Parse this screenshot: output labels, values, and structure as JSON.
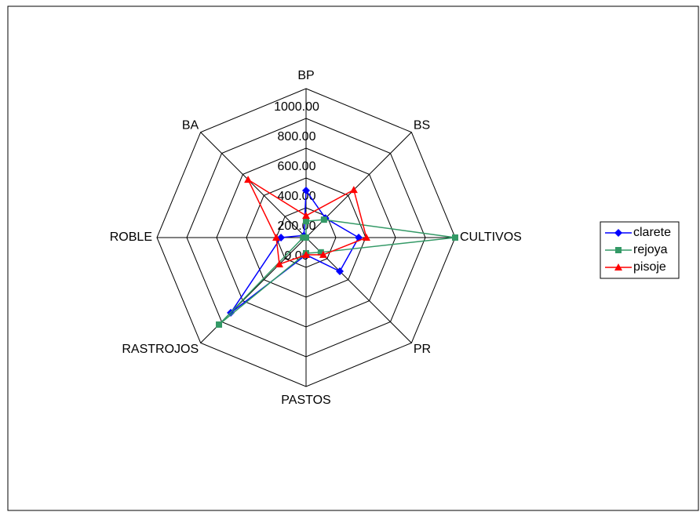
{
  "chart_data": {
    "type": "radar",
    "categories": [
      "BP",
      "BS",
      "CULTIVOS",
      "PR",
      "PASTOS",
      "RASTROJOS",
      "ROBLE",
      "BA"
    ],
    "series": [
      {
        "name": "clarete",
        "color": "#0000ff",
        "marker": "diamond",
        "values": [
          316,
          184,
          353,
          320,
          116,
          714,
          168,
          20
        ]
      },
      {
        "name": "rejoya",
        "color": "#339966",
        "marker": "square",
        "values": [
          110,
          170,
          1000,
          140,
          105,
          826,
          20,
          0
        ]
      },
      {
        "name": "pisoje",
        "color": "#ff0000",
        "marker": "triangle",
        "values": [
          147,
          453,
          405,
          163,
          116,
          253,
          200,
          550
        ]
      }
    ],
    "ylim": [
      0,
      1000
    ],
    "yticks": [
      {
        "value": 0,
        "label": "0.00"
      },
      {
        "value": 200,
        "label": "200.00"
      },
      {
        "value": 400,
        "label": "400.00"
      },
      {
        "value": 600,
        "label": "600.00"
      },
      {
        "value": 800,
        "label": "800.00"
      },
      {
        "value": 1000,
        "label": "1000.00"
      }
    ],
    "grid": true,
    "legend": "right"
  }
}
